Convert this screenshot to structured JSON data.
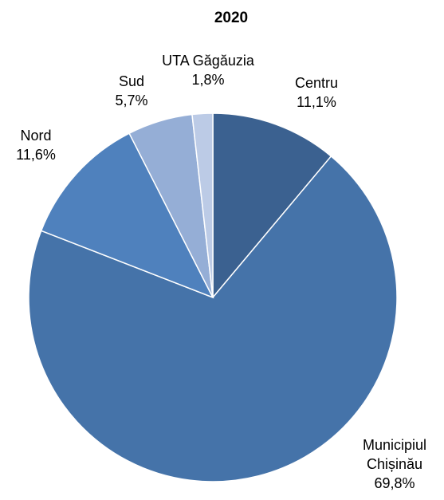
{
  "chart_data": {
    "type": "pie",
    "title": "2020",
    "categories": [
      "Centru",
      "Municipiul Chișinău",
      "Nord",
      "Sud",
      "UTA Găgăuzia"
    ],
    "values": [
      11.1,
      69.8,
      11.6,
      5.7,
      1.8
    ],
    "value_labels": [
      "11,1%",
      "69,8%",
      "11,6%",
      "5,7%",
      "1,8%"
    ],
    "colors": [
      "#3b6190",
      "#4573a9",
      "#4f81bd",
      "#95aed6",
      "#bccbe6"
    ]
  }
}
